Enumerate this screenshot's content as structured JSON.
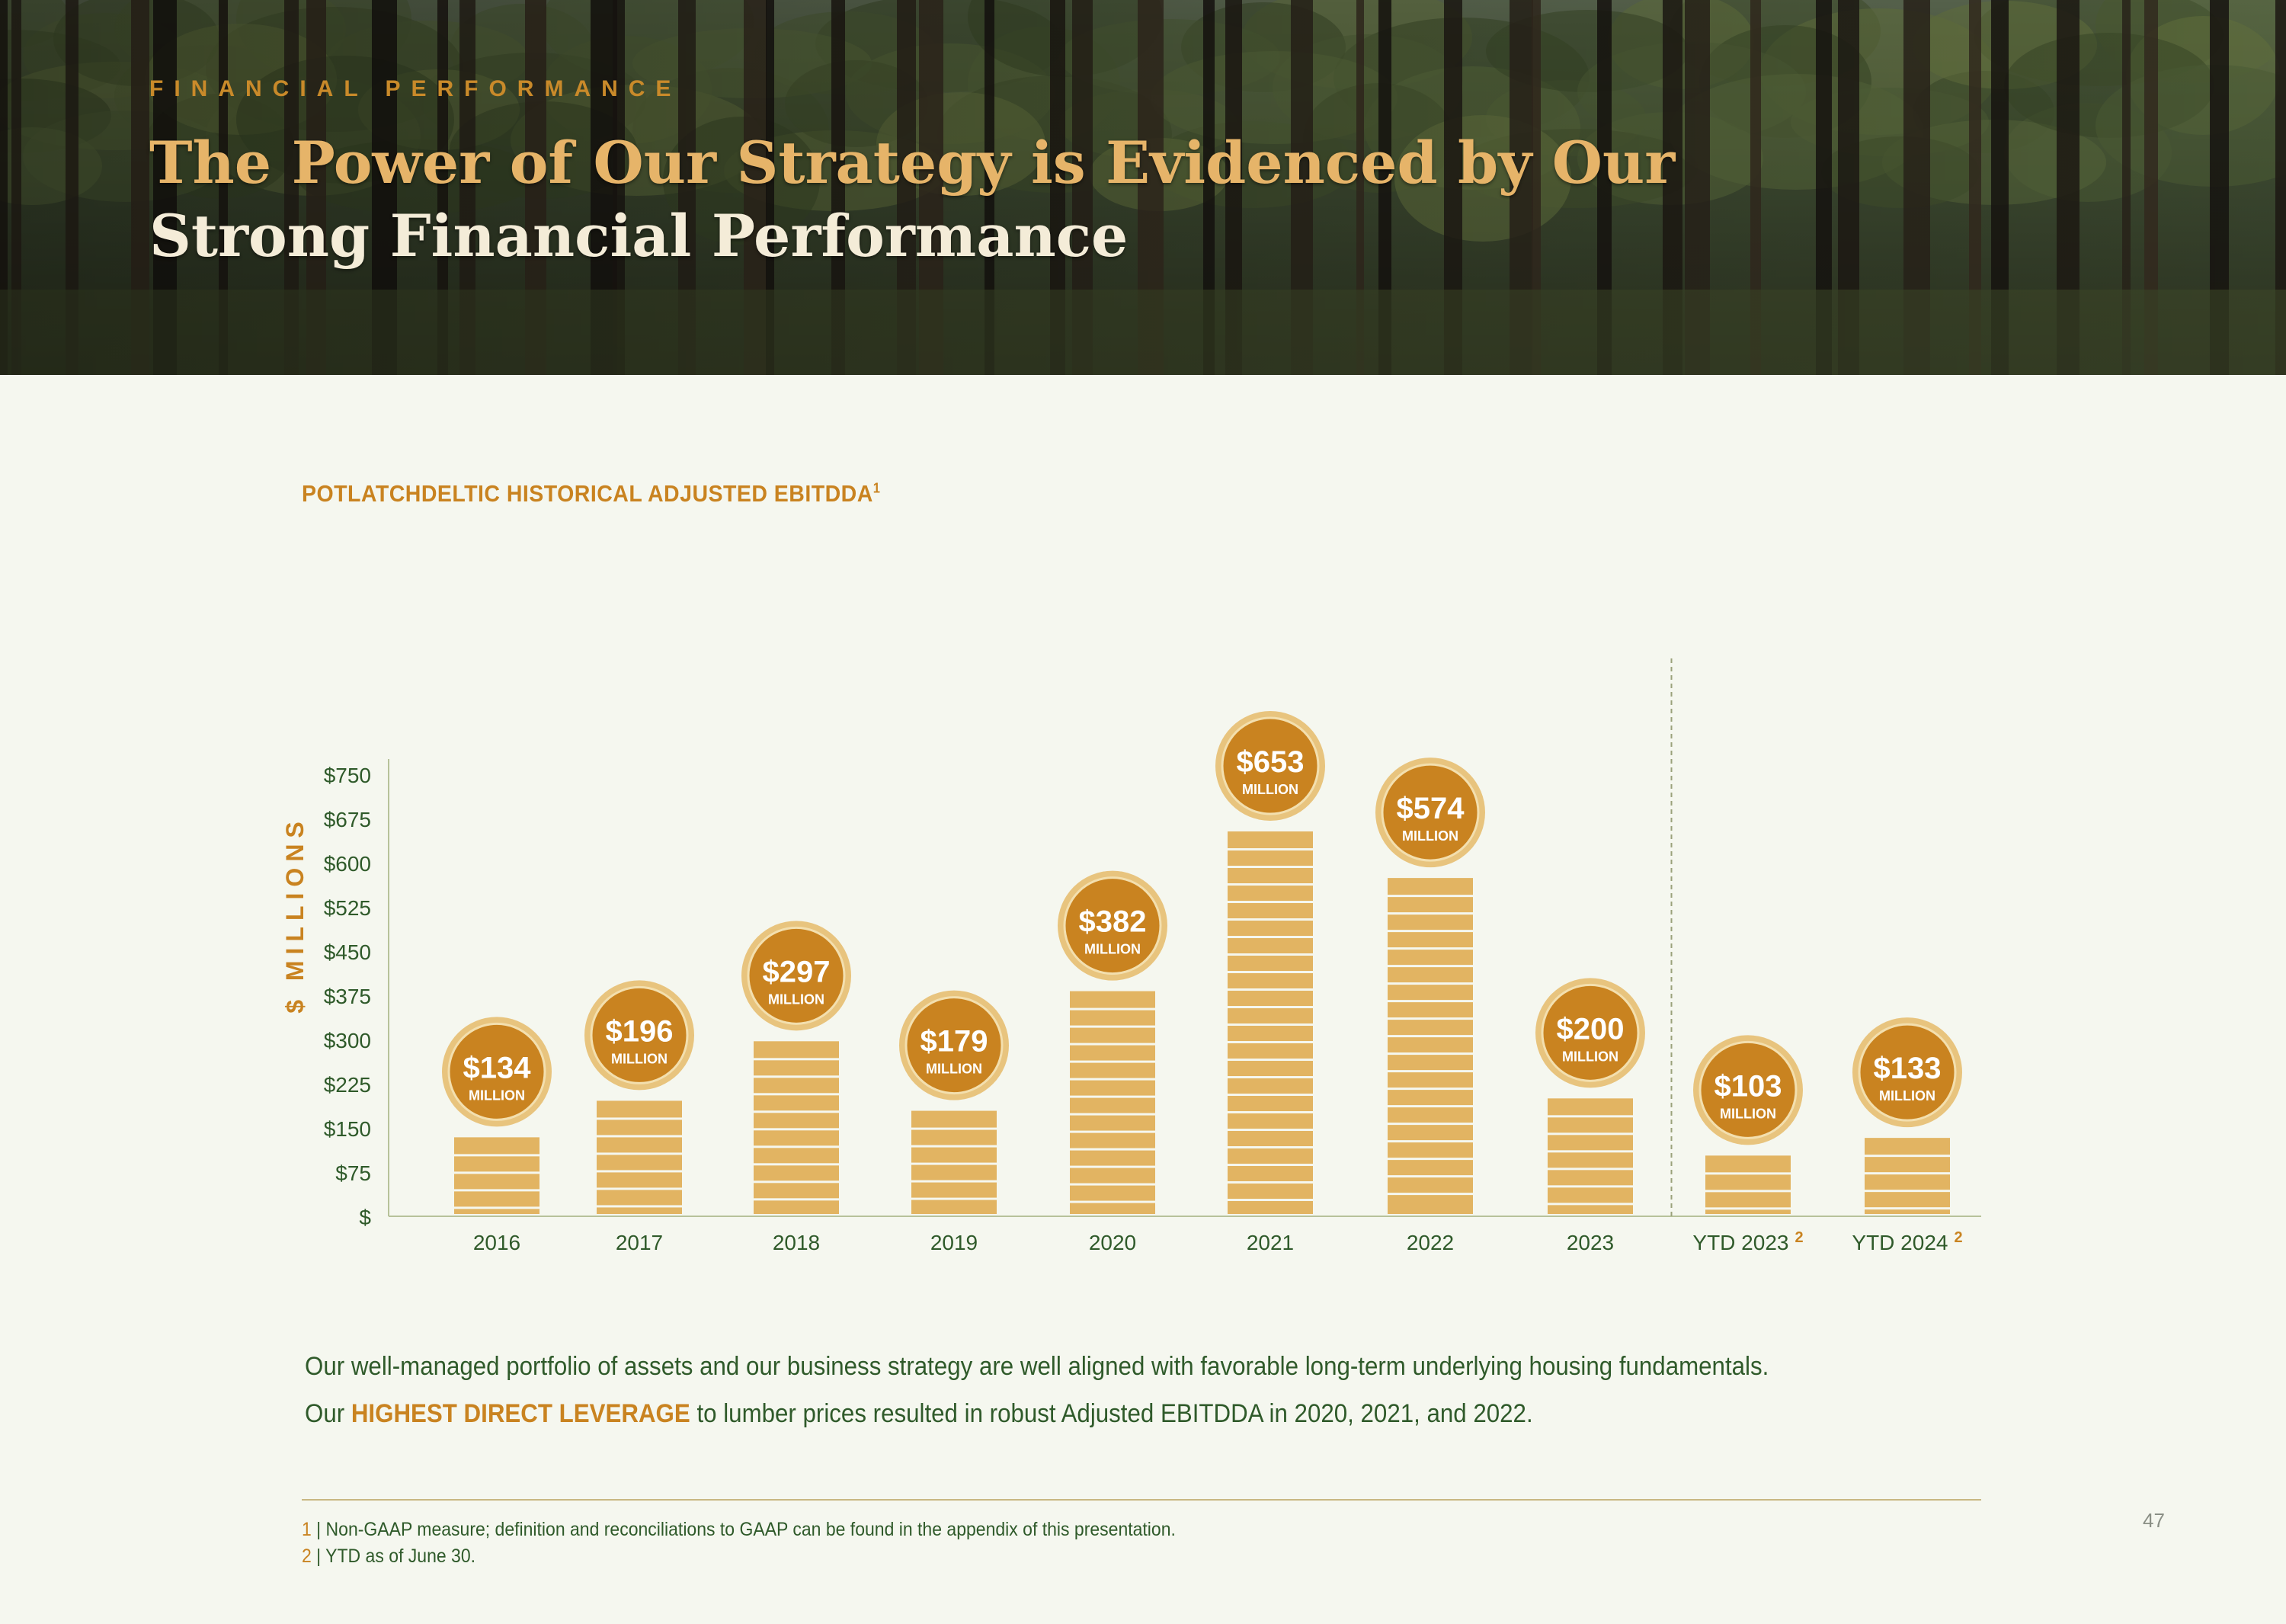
{
  "header": {
    "eyebrow": "FINANCIAL PERFORMANCE",
    "title_line1": "The Power of Our Strategy is Evidenced by Our",
    "title_line2": "Strong Financial Performance"
  },
  "chart_data": {
    "type": "bar",
    "title": "POTLATCHDELTIC HISTORICAL ADJUSTED EBITDDA",
    "title_footnote": "1",
    "ylabel": "$ MILLIONS",
    "xlabel": "",
    "ylim": [
      0,
      750
    ],
    "yticks": [
      0,
      75,
      150,
      225,
      300,
      375,
      450,
      525,
      600,
      675,
      750
    ],
    "ytick_labels": [
      "$",
      "$75",
      "$150",
      "$225",
      "$300",
      "$375",
      "$450",
      "$525",
      "$600",
      "$675",
      "$750"
    ],
    "categories": [
      "2016",
      "2017",
      "2018",
      "2019",
      "2020",
      "2021",
      "2022",
      "2023",
      "YTD 2023",
      "YTD 2024"
    ],
    "category_footnotes": [
      "",
      "",
      "",
      "",
      "",
      "",
      "",
      "",
      "2",
      "2"
    ],
    "values": [
      134,
      196,
      297,
      179,
      382,
      653,
      574,
      200,
      103,
      133
    ],
    "value_labels": [
      "$134",
      "$196",
      "$297",
      "$179",
      "$382",
      "$653",
      "$574",
      "$200",
      "$103",
      "$133"
    ],
    "value_unit": "MILLION",
    "separator_after_index": 7,
    "grid": false
  },
  "body": {
    "line1": "Our well-managed portfolio of assets and our business strategy are well aligned with favorable long-term underlying housing fundamentals.",
    "line2_prefix": "Our ",
    "line2_highlight": "HIGHEST DIRECT LEVERAGE",
    "line2_suffix": " to lumber prices resulted in robust Adjusted EBITDDA in 2020, 2021, and 2022."
  },
  "footnotes": [
    {
      "num": "1",
      "text": " | Non-GAAP measure; definition and reconciliations to GAAP can be found in the appendix of this presentation."
    },
    {
      "num": "2",
      "text": " | YTD as of June 30."
    }
  ],
  "page_number": "47",
  "colors": {
    "background": "#f5f7ef",
    "accent": "#c98320",
    "bar": "#e2b462",
    "bar_line": "#f5f7ef",
    "badge_fill": "#c98320",
    "badge_ring": "#e8c47e",
    "text_green": "#2f5a2a"
  }
}
